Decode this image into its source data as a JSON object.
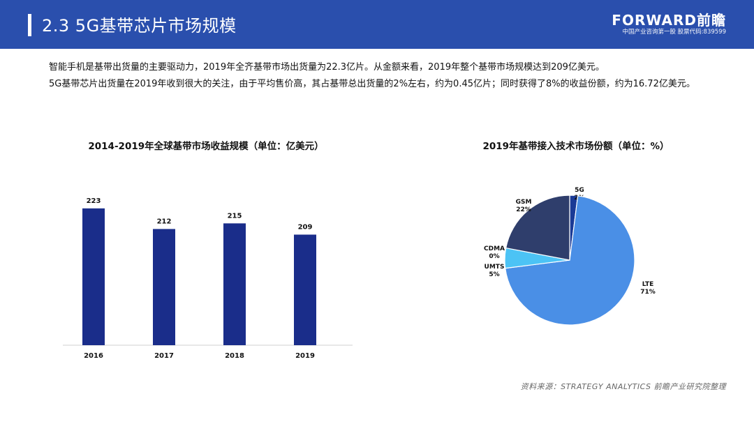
{
  "header": {
    "title": "2.3  5G基带芯片市场规模",
    "brand": "FORWARD前瞻",
    "brand_sub": "中国产业咨询第一股 股票代码:839599",
    "colors": {
      "header_bg": "#2a4fad"
    }
  },
  "intro": {
    "paragraph1": "智能手机是基带出货量的主要驱动力，2019年全齐基带市场出货量为22.3亿片。从金额来看，2019年整个基带市场规模达到209亿美元。",
    "paragraph2": "5G基带芯片出货量在2019年收到很大的关注，由于平均售价高，其占基带总出货量的2%左右，约为0.45亿片；同时获得了8%的收益份额，约为16.72亿美元。"
  },
  "source": "资料来源：STRATEGY ANALYTICS 前瞻产业研究院整理",
  "chart_data": [
    {
      "type": "bar",
      "title": "2014-2019年全球基带市场收益规模（单位：亿美元）",
      "categories": [
        "2016",
        "2017",
        "2018",
        "2019"
      ],
      "values": [
        223,
        212,
        215,
        209
      ],
      "ylim": [
        150,
        230
      ],
      "grid": false,
      "color": "#1a2d8a"
    },
    {
      "type": "pie",
      "title": "2019年基带接入技术市场份额（单位：%）",
      "slices": [
        {
          "label": "5G",
          "value": 2,
          "value_label": "2%",
          "color": "#1a3a96"
        },
        {
          "label": "LTE",
          "value": 71,
          "value_label": "71%",
          "color": "#4a8fe6"
        },
        {
          "label": "UMTS",
          "value": 5,
          "value_label": "5%",
          "color": "#4cc3f5"
        },
        {
          "label": "CDMA",
          "value": 0,
          "value_label": "0%",
          "color": "#9fb3d6"
        },
        {
          "label": "GSM",
          "value": 22,
          "value_label": "22%",
          "color": "#2f3e6c"
        }
      ]
    }
  ]
}
